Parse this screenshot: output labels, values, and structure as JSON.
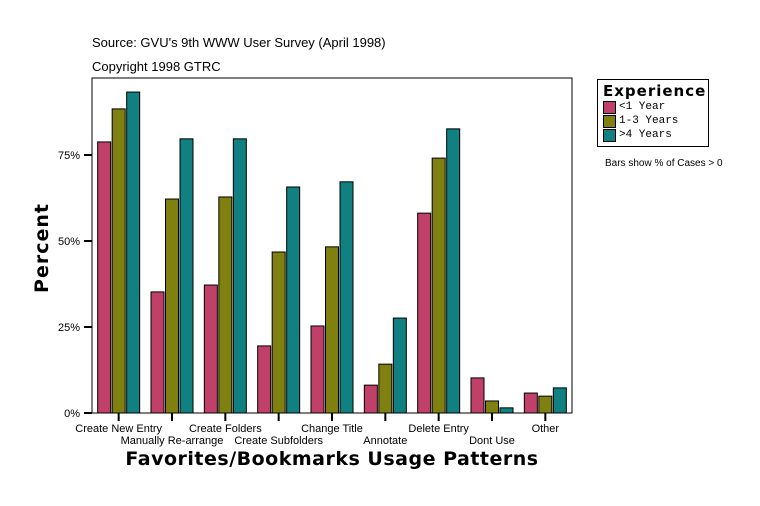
{
  "header": {
    "source": "Source: GVU's 9th WWW User Survey (April 1998)",
    "copyright": "Copyright 1998 GTRC"
  },
  "note": "Bars show % of Cases > 0",
  "chart_data": {
    "type": "bar",
    "title": "",
    "xlabel": "Favorites/Bookmarks Usage Patterns",
    "ylabel": "Percent",
    "ylim": [
      0,
      97
    ],
    "yticks": [
      0,
      25,
      50,
      75
    ],
    "ytick_labels": [
      "0%",
      "25%",
      "50%",
      "75%"
    ],
    "legend_title": "Experience",
    "legend_position": "right",
    "categories": [
      "Create New Entry",
      "Manually Re-arrange",
      "Create Folders",
      "Create Subfolders",
      "Change Title",
      "Annotate",
      "Delete Entry",
      "Dont Use",
      "Other"
    ],
    "series": [
      {
        "name": "<1 Year",
        "color": "#c0406a",
        "values": [
          78.8,
          35.2,
          37.2,
          19.5,
          25.3,
          8.1,
          58.1,
          10.2,
          5.8
        ]
      },
      {
        "name": "1-3 Years",
        "color": "#808010",
        "values": [
          88.4,
          62.2,
          62.8,
          46.8,
          48.3,
          14.2,
          74.1,
          3.5,
          4.9
        ]
      },
      {
        "name": ">4 Years",
        "color": "#108080",
        "values": [
          93.3,
          79.7,
          79.7,
          65.7,
          67.2,
          27.6,
          82.6,
          1.5,
          7.3
        ]
      }
    ]
  }
}
